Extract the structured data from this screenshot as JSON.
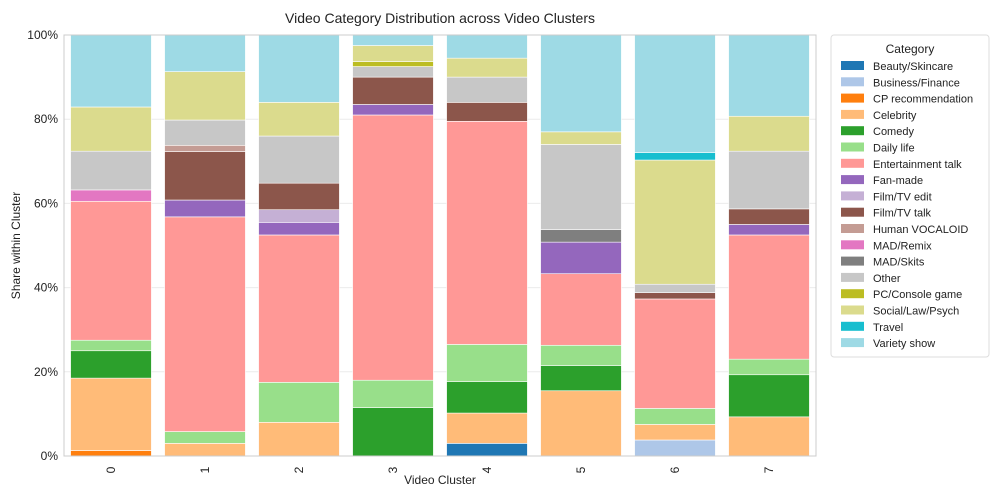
{
  "chart_data": {
    "type": "bar",
    "stacked": true,
    "title": "Video Category Distribution across Video Clusters",
    "xlabel": "Video Cluster",
    "ylabel": "Share within Cluster",
    "ylim": [
      0,
      1
    ],
    "yticks": [
      "0%",
      "20%",
      "40%",
      "60%",
      "80%",
      "100%"
    ],
    "categories": [
      "0",
      "1",
      "2",
      "3",
      "4",
      "5",
      "6",
      "7"
    ],
    "legend": {
      "title": "Category",
      "position": "right"
    },
    "series": [
      {
        "name": "Beauty/Skincare",
        "color": "#1f77b4",
        "values": [
          0,
          0,
          0,
          0,
          0.03,
          0,
          0,
          0
        ]
      },
      {
        "name": "Business/Finance",
        "color": "#aec7e8",
        "values": [
          0,
          0,
          0,
          0,
          0,
          0,
          0.038,
          0
        ]
      },
      {
        "name": "CP recommendation",
        "color": "#ff7f0e",
        "values": [
          0.013,
          0,
          0,
          0,
          0,
          0,
          0,
          0
        ]
      },
      {
        "name": "Celebrity",
        "color": "#ffbb78",
        "values": [
          0.172,
          0.03,
          0.08,
          0,
          0.072,
          0.155,
          0.037,
          0.093
        ]
      },
      {
        "name": "Comedy",
        "color": "#2ca02c",
        "values": [
          0.065,
          0,
          0,
          0.115,
          0.075,
          0.06,
          0,
          0.1
        ]
      },
      {
        "name": "Daily life",
        "color": "#98df8a",
        "values": [
          0.025,
          0.028,
          0.095,
          0.065,
          0.088,
          0.048,
          0.038,
          0.037
        ]
      },
      {
        "name": "Entertainment talk",
        "color": "#ff9896",
        "values": [
          0.33,
          0.51,
          0.35,
          0.63,
          0.53,
          0.17,
          0.26,
          0.295
        ]
      },
      {
        "name": "Fan-made",
        "color": "#9467bd",
        "values": [
          0,
          0.04,
          0.03,
          0.025,
          0,
          0.075,
          0,
          0.025
        ]
      },
      {
        "name": "Film/TV edit",
        "color": "#c5b0d5",
        "values": [
          0,
          0,
          0.03,
          0,
          0,
          0,
          0,
          0
        ]
      },
      {
        "name": "Film/TV talk",
        "color": "#8c564b",
        "values": [
          0,
          0.115,
          0.063,
          0.065,
          0.045,
          0,
          0.015,
          0.037
        ]
      },
      {
        "name": "Human VOCALOID",
        "color": "#c49c94",
        "values": [
          0,
          0.015,
          0,
          0,
          0,
          0,
          0,
          0
        ]
      },
      {
        "name": "MAD/Remix",
        "color": "#e377c2",
        "values": [
          0.027,
          0,
          0,
          0,
          0,
          0,
          0,
          0
        ]
      },
      {
        "name": "MAD/Skits",
        "color": "#7f7f7f",
        "values": [
          0,
          0,
          0,
          0,
          0,
          0.03,
          0,
          0
        ]
      },
      {
        "name": "Other",
        "color": "#c7c7c7",
        "values": [
          0.092,
          0.06,
          0.112,
          0.025,
          0.06,
          0.202,
          0.02,
          0.137
        ]
      },
      {
        "name": "PC/Console game",
        "color": "#bcbd22",
        "values": [
          0,
          0,
          0,
          0.012,
          0,
          0,
          0,
          0
        ]
      },
      {
        "name": "Social/Law/Psych",
        "color": "#dbdb8d",
        "values": [
          0.105,
          0.115,
          0.08,
          0.038,
          0.045,
          0.03,
          0.295,
          0.083
        ]
      },
      {
        "name": "Travel",
        "color": "#17becf",
        "values": [
          0,
          0,
          0,
          0,
          0,
          0,
          0.018,
          0
        ]
      },
      {
        "name": "Variety show",
        "color": "#9edae5",
        "values": [
          0.171,
          0.087,
          0.16,
          0.027,
          0.057,
          0.23,
          0.279,
          0.193
        ]
      }
    ]
  }
}
